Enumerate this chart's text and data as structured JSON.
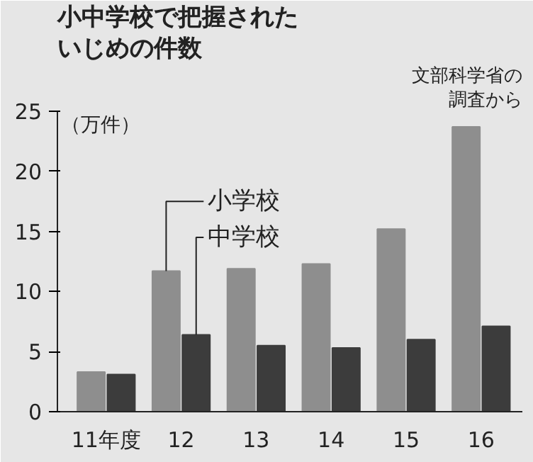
{
  "chart_data": {
    "type": "bar",
    "title": "小中学校で把握された",
    "subtitle": "いじめの件数",
    "ylabel": "（万件）",
    "annotations": [
      "文部科学省の",
      "調査から"
    ],
    "categories": [
      "11年度",
      "12",
      "13",
      "14",
      "15",
      "16"
    ],
    "series": [
      {
        "name": "小学校",
        "color": "#8e8e8e",
        "values": [
          3.3,
          11.7,
          11.9,
          12.3,
          15.2,
          23.7
        ]
      },
      {
        "name": "中学校",
        "color": "#3c3c3c",
        "values": [
          3.1,
          6.4,
          5.5,
          5.3,
          6.0,
          7.1
        ]
      }
    ],
    "ylim": [
      0,
      25
    ],
    "yticks": [
      0,
      5,
      10,
      15,
      20,
      25
    ],
    "legend": false
  }
}
